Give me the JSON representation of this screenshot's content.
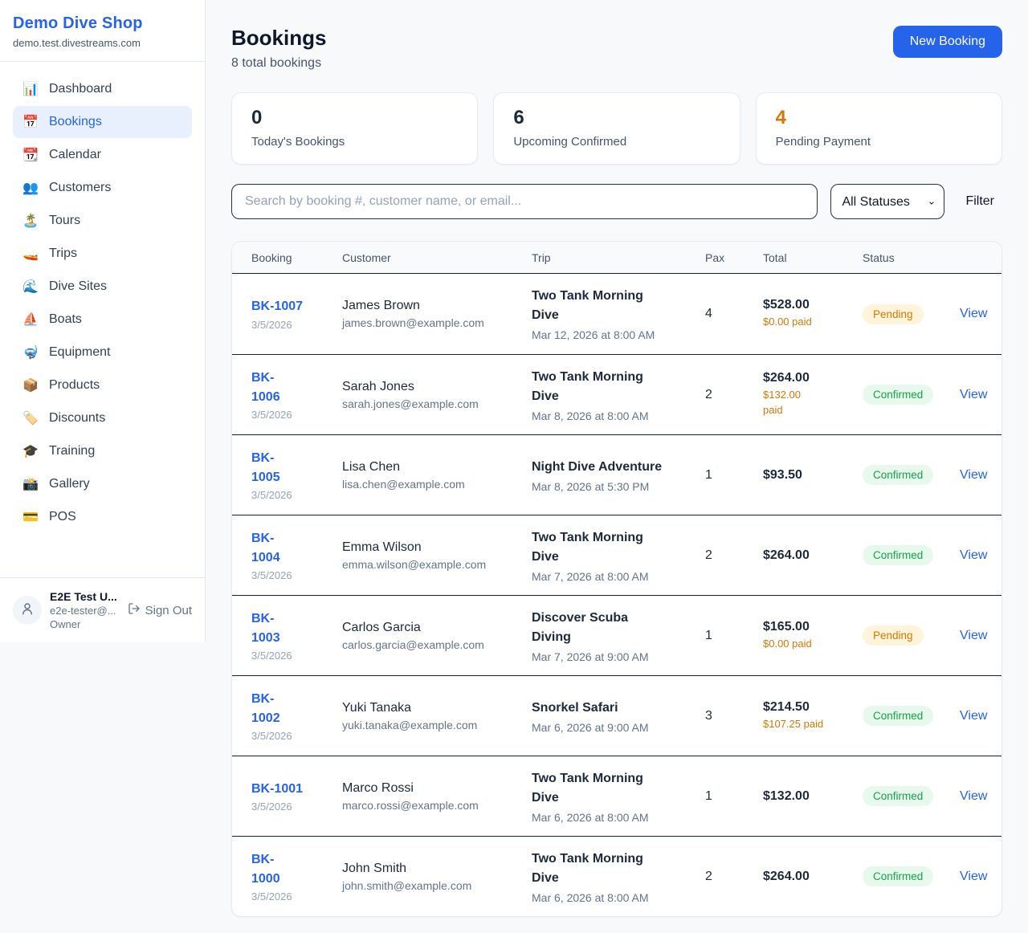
{
  "brand": {
    "name": "Demo Dive Shop",
    "domain": "demo.test.divestreams.com"
  },
  "sidebar": {
    "items": [
      {
        "label": "Dashboard",
        "icon": "📊",
        "active": false
      },
      {
        "label": "Bookings",
        "icon": "📅",
        "active": true
      },
      {
        "label": "Calendar",
        "icon": "📆",
        "active": false
      },
      {
        "label": "Customers",
        "icon": "👥",
        "active": false
      },
      {
        "label": "Tours",
        "icon": "🏝️",
        "active": false
      },
      {
        "label": "Trips",
        "icon": "🚤",
        "active": false
      },
      {
        "label": "Dive Sites",
        "icon": "🌊",
        "active": false
      },
      {
        "label": "Boats",
        "icon": "⛵",
        "active": false
      },
      {
        "label": "Equipment",
        "icon": "🤿",
        "active": false
      },
      {
        "label": "Products",
        "icon": "📦",
        "active": false
      },
      {
        "label": "Discounts",
        "icon": "🏷️",
        "active": false
      },
      {
        "label": "Training",
        "icon": "🎓",
        "active": false
      },
      {
        "label": "Gallery",
        "icon": "📸",
        "active": false
      },
      {
        "label": "POS",
        "icon": "💳",
        "active": false
      }
    ],
    "user": {
      "name": "E2E Test U...",
      "email": "e2e-tester@...",
      "role": "Owner",
      "sign_out_label": "Sign Out"
    }
  },
  "header": {
    "title": "Bookings",
    "subtitle": "8 total bookings",
    "new_booking_label": "New Booking"
  },
  "stats": [
    {
      "value": "0",
      "label": "Today's Bookings",
      "color": "#1e293b"
    },
    {
      "value": "6",
      "label": "Upcoming Confirmed",
      "color": "#1e293b"
    },
    {
      "value": "4",
      "label": "Pending Payment",
      "color": "#d97706"
    }
  ],
  "filters": {
    "search_placeholder": "Search by booking #, customer name, or email...",
    "status_selected": "All Statuses",
    "filter_label": "Filter"
  },
  "table": {
    "headers": [
      "Booking",
      "Customer",
      "Trip",
      "Pax",
      "Total",
      "Status"
    ],
    "view_label": "View",
    "rows": [
      {
        "id": "BK-1007",
        "date": "3/5/2026",
        "customer": "James Brown",
        "email": "james.brown@example.com",
        "trip": "Two Tank Morning\nDive",
        "datetime": "Mar 12, 2026 at 8:00 AM",
        "pax": "4",
        "total": "$528.00",
        "paid": "$0.00 paid",
        "status": "Pending"
      },
      {
        "id": "BK-\n1006",
        "date": "3/5/2026",
        "customer": "Sarah Jones",
        "email": "sarah.jones@example.com",
        "trip": "Two Tank Morning\nDive",
        "datetime": "Mar 8, 2026 at 8:00 AM",
        "pax": "2",
        "total": "$264.00",
        "paid": "$132.00\npaid",
        "status": "Confirmed"
      },
      {
        "id": "BK-\n1005",
        "date": "3/5/2026",
        "customer": "Lisa Chen",
        "email": "lisa.chen@example.com",
        "trip": "Night Dive Adventure",
        "datetime": "Mar 8, 2026 at 5:30 PM",
        "pax": "1",
        "total": "$93.50",
        "paid": null,
        "status": "Confirmed"
      },
      {
        "id": "BK-\n1004",
        "date": "3/5/2026",
        "customer": "Emma Wilson",
        "email": "emma.wilson@example.com",
        "trip": "Two Tank Morning\nDive",
        "datetime": "Mar 7, 2026 at 8:00 AM",
        "pax": "2",
        "total": "$264.00",
        "paid": null,
        "status": "Confirmed"
      },
      {
        "id": "BK-\n1003",
        "date": "3/5/2026",
        "customer": "Carlos Garcia",
        "email": "carlos.garcia@example.com",
        "trip": "Discover Scuba\nDiving",
        "datetime": "Mar 7, 2026 at 9:00 AM",
        "pax": "1",
        "total": "$165.00",
        "paid": "$0.00 paid",
        "status": "Pending"
      },
      {
        "id": "BK-\n1002",
        "date": "3/5/2026",
        "customer": "Yuki Tanaka",
        "email": "yuki.tanaka@example.com",
        "trip": "Snorkel Safari",
        "datetime": "Mar 6, 2026 at 9:00 AM",
        "pax": "3",
        "total": "$214.50",
        "paid": "$107.25 paid",
        "status": "Confirmed"
      },
      {
        "id": "BK-1001",
        "date": "3/5/2026",
        "customer": "Marco Rossi",
        "email": "marco.rossi@example.com",
        "trip": "Two Tank Morning\nDive",
        "datetime": "Mar 6, 2026 at 8:00 AM",
        "pax": "1",
        "total": "$132.00",
        "paid": null,
        "status": "Confirmed"
      },
      {
        "id": "BK-\n1000",
        "date": "3/5/2026",
        "customer": "John Smith",
        "email": "john.smith@example.com",
        "trip": "Two Tank Morning\nDive",
        "datetime": "Mar 6, 2026 at 8:00 AM",
        "pax": "2",
        "total": "$264.00",
        "paid": null,
        "status": "Confirmed"
      }
    ]
  },
  "colors": {
    "accent_blue": "#2563eb",
    "pending_text": "#d97706",
    "pending_bg": "#fdf4da",
    "confirmed_text": "#16a34a",
    "confirmed_bg": "#e7f8ed",
    "page_bg": "#f7f9fb"
  }
}
